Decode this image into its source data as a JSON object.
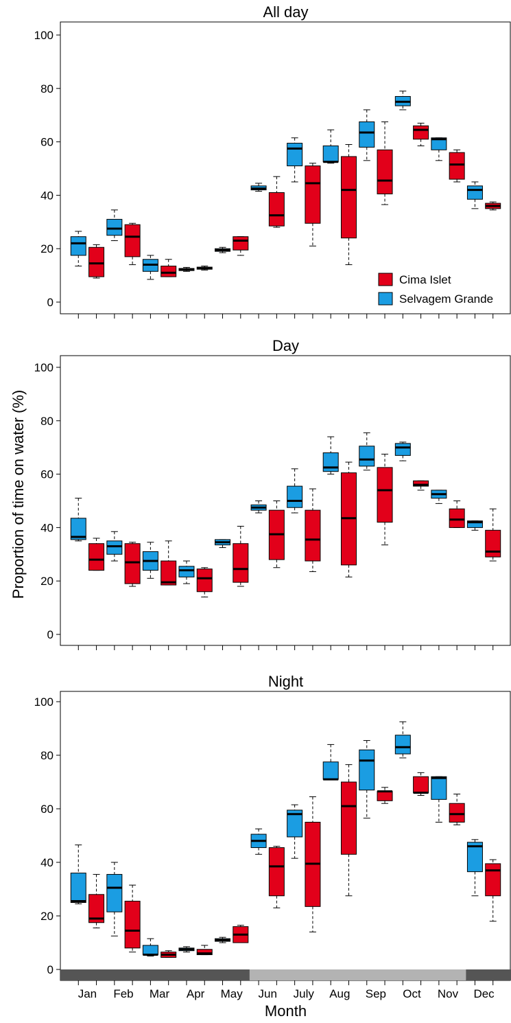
{
  "chart_data": {
    "type": "box",
    "ylabel": "Proportion of time on water (%)",
    "xlabel": "Month",
    "months": [
      "Jan",
      "Feb",
      "Mar",
      "Apr",
      "May",
      "Jun",
      "July",
      "Aug",
      "Sep",
      "Oct",
      "Nov",
      "Dec"
    ],
    "ylim": [
      0,
      100
    ],
    "yticks": [
      0,
      20,
      40,
      60,
      80,
      100
    ],
    "legend": {
      "position": "bottom-right of first panel",
      "entries": [
        {
          "label": "Cima Islet",
          "color": "#e2001a"
        },
        {
          "label": "Selvagem Grande",
          "color": "#1b9de2"
        }
      ]
    },
    "season_bar": {
      "colors": [
        "#555555",
        "#b3b3b3",
        "#555555"
      ],
      "segments": [
        {
          "from": "Jan",
          "to": "May",
          "shade": "dark"
        },
        {
          "from": "Jun",
          "to": "Nov",
          "shade": "light"
        },
        {
          "from": "Dec",
          "to": "Dec",
          "shade": "dark"
        }
      ]
    },
    "panels": [
      {
        "title": "All day",
        "series": [
          {
            "name": "Selvagem Grande",
            "boxes": [
              {
                "month": "Jan",
                "min": 13.5,
                "q1": 17.5,
                "median": 22,
                "q3": 24.5,
                "max": 26.5
              },
              {
                "month": "Feb",
                "min": 23,
                "q1": 25,
                "median": 27.5,
                "q3": 31,
                "max": 34.5
              },
              {
                "month": "Mar",
                "min": 8.5,
                "q1": 11.5,
                "median": 14,
                "q3": 16,
                "max": 17.5
              },
              {
                "month": "Apr",
                "min": 11.5,
                "q1": 11.8,
                "median": 12.2,
                "q3": 12.6,
                "max": 13
              },
              {
                "month": "May",
                "min": 18.5,
                "q1": 19,
                "median": 19.5,
                "q3": 20,
                "max": 20.5
              },
              {
                "month": "Jun",
                "min": 41.5,
                "q1": 42,
                "median": 42.5,
                "q3": 43.5,
                "max": 44.5
              },
              {
                "month": "July",
                "min": 45,
                "q1": 51,
                "median": 57.5,
                "q3": 59.5,
                "max": 61.5
              },
              {
                "month": "Aug",
                "min": 52,
                "q1": 52.5,
                "median": 52.5,
                "q3": 58.5,
                "max": 64.5
              },
              {
                "month": "Sep",
                "min": 53,
                "q1": 58,
                "median": 63.5,
                "q3": 67.5,
                "max": 72
              },
              {
                "month": "Oct",
                "min": 72,
                "q1": 73.5,
                "median": 75,
                "q3": 77,
                "max": 79
              },
              {
                "month": "Nov",
                "min": 53,
                "q1": 57,
                "median": 61,
                "q3": 61.5,
                "max": 61.5
              },
              {
                "month": "Dec",
                "min": 35,
                "q1": 38.5,
                "median": 42,
                "q3": 43.5,
                "max": 45
              }
            ]
          },
          {
            "name": "Cima Islet",
            "boxes": [
              {
                "month": "Jan",
                "min": 9,
                "q1": 9.5,
                "median": 14.5,
                "q3": 20.5,
                "max": 21.5
              },
              {
                "month": "Feb",
                "min": 14,
                "q1": 17,
                "median": 24.5,
                "q3": 29,
                "max": 29.5
              },
              {
                "month": "Mar",
                "min": 9.5,
                "q1": 9.5,
                "median": 11,
                "q3": 13.5,
                "max": 16
              },
              {
                "month": "Apr",
                "min": 12,
                "q1": 12.3,
                "median": 12.7,
                "q3": 13.1,
                "max": 13.5
              },
              {
                "month": "May",
                "min": 17.5,
                "q1": 19.5,
                "median": 23,
                "q3": 24.5,
                "max": 24.5
              },
              {
                "month": "Jun",
                "min": 28,
                "q1": 28.5,
                "median": 32.5,
                "q3": 41,
                "max": 47
              },
              {
                "month": "July",
                "min": 21,
                "q1": 29.5,
                "median": 44.5,
                "q3": 51,
                "max": 52
              },
              {
                "month": "Aug",
                "min": 14,
                "q1": 24,
                "median": 42,
                "q3": 54.5,
                "max": 59
              },
              {
                "month": "Sep",
                "min": 36.5,
                "q1": 40.5,
                "median": 45.5,
                "q3": 57,
                "max": 67.5
              },
              {
                "month": "Oct",
                "min": 58.5,
                "q1": 61,
                "median": 64.5,
                "q3": 66,
                "max": 67
              },
              {
                "month": "Nov",
                "min": 45,
                "q1": 46,
                "median": 51.5,
                "q3": 56,
                "max": 57
              },
              {
                "month": "Dec",
                "min": 34.5,
                "q1": 35,
                "median": 36,
                "q3": 37,
                "max": 37.5
              }
            ]
          }
        ]
      },
      {
        "title": "Day",
        "series": [
          {
            "name": "Selvagem Grande",
            "boxes": [
              {
                "month": "Jan",
                "min": 35,
                "q1": 35.5,
                "median": 36.5,
                "q3": 43.5,
                "max": 51
              },
              {
                "month": "Feb",
                "min": 27.5,
                "q1": 30,
                "median": 33,
                "q3": 35,
                "max": 38.5
              },
              {
                "month": "Mar",
                "min": 21,
                "q1": 24,
                "median": 27.5,
                "q3": 31,
                "max": 34.5
              },
              {
                "month": "Apr",
                "min": 19,
                "q1": 21.5,
                "median": 24,
                "q3": 25.5,
                "max": 27.5
              },
              {
                "month": "May",
                "min": 32.5,
                "q1": 33.5,
                "median": 34.5,
                "q3": 35.5,
                "max": 35.5
              },
              {
                "month": "Jun",
                "min": 45.5,
                "q1": 46.5,
                "median": 47.5,
                "q3": 48.5,
                "max": 50
              },
              {
                "month": "July",
                "min": 45.5,
                "q1": 47.5,
                "median": 50,
                "q3": 55.5,
                "max": 62
              },
              {
                "month": "Aug",
                "min": 60,
                "q1": 61,
                "median": 62.5,
                "q3": 68,
                "max": 74
              },
              {
                "month": "Sep",
                "min": 61.5,
                "q1": 63,
                "median": 65.5,
                "q3": 70.5,
                "max": 75.5
              },
              {
                "month": "Oct",
                "min": 65,
                "q1": 67,
                "median": 70,
                "q3": 71.5,
                "max": 72
              },
              {
                "month": "Nov",
                "min": 49,
                "q1": 51,
                "median": 52.5,
                "q3": 54,
                "max": 54
              },
              {
                "month": "Dec",
                "min": 39,
                "q1": 40,
                "median": 42,
                "q3": 42.5,
                "max": 42.5
              }
            ]
          },
          {
            "name": "Cima Islet",
            "boxes": [
              {
                "month": "Jan",
                "min": 24,
                "q1": 24,
                "median": 28,
                "q3": 34,
                "max": 36
              },
              {
                "month": "Feb",
                "min": 18,
                "q1": 19,
                "median": 27,
                "q3": 34,
                "max": 34.5
              },
              {
                "month": "Mar",
                "min": 18.5,
                "q1": 18.5,
                "median": 19.5,
                "q3": 27.5,
                "max": 35
              },
              {
                "month": "Apr",
                "min": 14,
                "q1": 16,
                "median": 21,
                "q3": 24.5,
                "max": 25
              },
              {
                "month": "May",
                "min": 18,
                "q1": 19.5,
                "median": 24.5,
                "q3": 34,
                "max": 40.5
              },
              {
                "month": "Jun",
                "min": 25,
                "q1": 28,
                "median": 37.5,
                "q3": 46.5,
                "max": 50
              },
              {
                "month": "July",
                "min": 23.5,
                "q1": 27.5,
                "median": 35.5,
                "q3": 46.5,
                "max": 54.5
              },
              {
                "month": "Aug",
                "min": 21.5,
                "q1": 26,
                "median": 43.5,
                "q3": 60.5,
                "max": 64.5
              },
              {
                "month": "Sep",
                "min": 33.5,
                "q1": 42,
                "median": 54,
                "q3": 62.5,
                "max": 67.5
              },
              {
                "month": "Oct",
                "min": 54,
                "q1": 55.5,
                "median": 56,
                "q3": 57.5,
                "max": 57.5
              },
              {
                "month": "Nov",
                "min": 40,
                "q1": 40,
                "median": 43,
                "q3": 47,
                "max": 50
              },
              {
                "month": "Dec",
                "min": 27.5,
                "q1": 29,
                "median": 31,
                "q3": 39,
                "max": 47
              }
            ]
          }
        ]
      },
      {
        "title": "Night",
        "series": [
          {
            "name": "Selvagem Grande",
            "boxes": [
              {
                "month": "Jan",
                "min": 24.5,
                "q1": 25,
                "median": 25.5,
                "q3": 36,
                "max": 46.5
              },
              {
                "month": "Feb",
                "min": 12.5,
                "q1": 21.5,
                "median": 30.5,
                "q3": 35.5,
                "max": 40
              },
              {
                "month": "Mar",
                "min": 5,
                "q1": 5.5,
                "median": 5.5,
                "q3": 9,
                "max": 11.5
              },
              {
                "month": "Apr",
                "min": 6.5,
                "q1": 7,
                "median": 7.5,
                "q3": 8,
                "max": 8.5
              },
              {
                "month": "May",
                "min": 10,
                "q1": 10.5,
                "median": 11,
                "q3": 11.5,
                "max": 12
              },
              {
                "month": "Jun",
                "min": 43,
                "q1": 45.5,
                "median": 48,
                "q3": 50.5,
                "max": 52.5
              },
              {
                "month": "July",
                "min": 41.5,
                "q1": 49.5,
                "median": 58,
                "q3": 59.5,
                "max": 61.5
              },
              {
                "month": "Aug",
                "min": 71,
                "q1": 71,
                "median": 71,
                "q3": 77.5,
                "max": 84
              },
              {
                "month": "Sep",
                "min": 56.5,
                "q1": 67,
                "median": 78,
                "q3": 82,
                "max": 85.5
              },
              {
                "month": "Oct",
                "min": 79,
                "q1": 80.5,
                "median": 83,
                "q3": 87.5,
                "max": 92.5
              },
              {
                "month": "Nov",
                "min": 55,
                "q1": 63.5,
                "median": 71.5,
                "q3": 72,
                "max": 72
              },
              {
                "month": "Dec",
                "min": 27.5,
                "q1": 36.5,
                "median": 46,
                "q3": 47.5,
                "max": 48.5
              }
            ]
          },
          {
            "name": "Cima Islet",
            "boxes": [
              {
                "month": "Jan",
                "min": 15.5,
                "q1": 17.5,
                "median": 19,
                "q3": 28,
                "max": 35.5
              },
              {
                "month": "Feb",
                "min": 6.5,
                "q1": 8,
                "median": 14.5,
                "q3": 25.5,
                "max": 31.5
              },
              {
                "month": "Mar",
                "min": 4.5,
                "q1": 4.5,
                "median": 5.5,
                "q3": 6.5,
                "max": 7
              },
              {
                "month": "Apr",
                "min": 5.5,
                "q1": 5.5,
                "median": 6,
                "q3": 7.5,
                "max": 9
              },
              {
                "month": "May",
                "min": 10,
                "q1": 10,
                "median": 13,
                "q3": 16,
                "max": 16.5
              },
              {
                "month": "Jun",
                "min": 23,
                "q1": 27.5,
                "median": 38.5,
                "q3": 45.5,
                "max": 46
              },
              {
                "month": "July",
                "min": 14,
                "q1": 23.5,
                "median": 39.5,
                "q3": 55,
                "max": 64.5
              },
              {
                "month": "Aug",
                "min": 27.5,
                "q1": 43,
                "median": 61,
                "q3": 70,
                "max": 76.5
              },
              {
                "month": "Sep",
                "min": 62,
                "q1": 63,
                "median": 66.5,
                "q3": 66.5,
                "max": 68
              },
              {
                "month": "Oct",
                "min": 65,
                "q1": 66,
                "median": 66,
                "q3": 72,
                "max": 73.5
              },
              {
                "month": "Nov",
                "min": 54,
                "q1": 55,
                "median": 58,
                "q3": 62,
                "max": 65.5
              },
              {
                "month": "Dec",
                "min": 18,
                "q1": 27.5,
                "median": 37,
                "q3": 39.5,
                "max": 41
              }
            ]
          }
        ]
      }
    ]
  }
}
